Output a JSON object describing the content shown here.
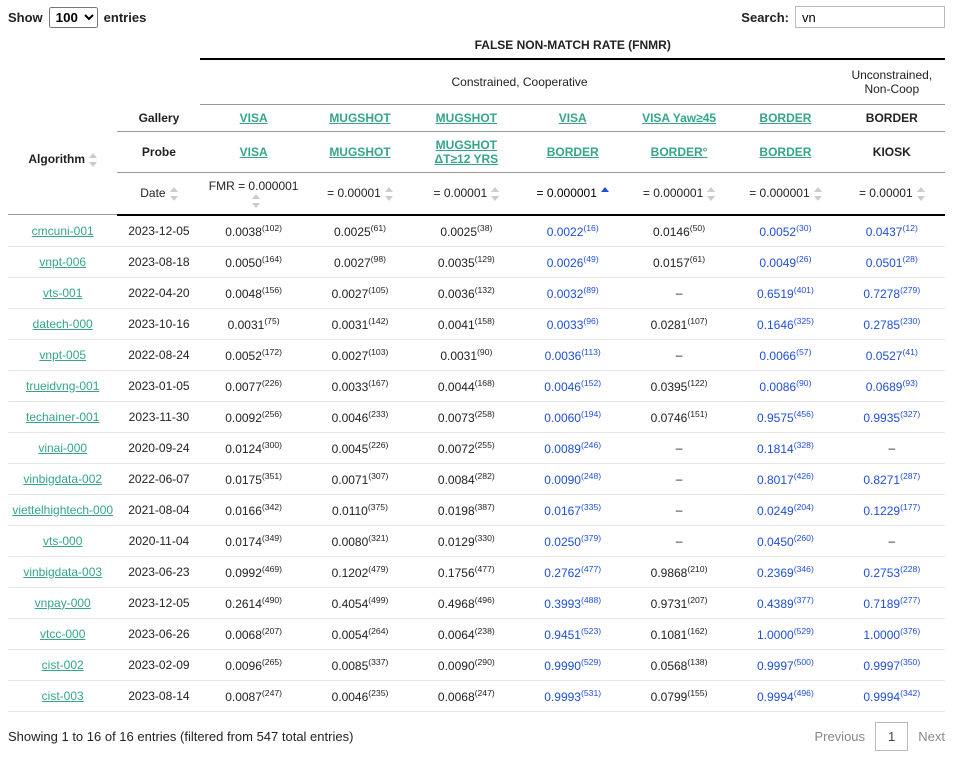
{
  "controls": {
    "show_label_pre": "Show",
    "show_label_post": "entries",
    "show_value": "100",
    "search_label": "Search:",
    "search_value": "vn"
  },
  "header": {
    "title": "FALSE NON-MATCH RATE (FNMR)",
    "group_constrained": "Constrained, Cooperative",
    "group_unconstrained": "Unconstrained, Non-Coop",
    "algorithm": "Algorithm",
    "gallery": "Gallery",
    "probe": "Probe",
    "date": "Date",
    "gallery_cols": [
      "VISA",
      "MUGSHOT",
      "MUGSHOT",
      "VISA",
      "VISA Yaw≥45",
      "BORDER",
      "BORDER"
    ],
    "gallery_links": [
      true,
      true,
      true,
      true,
      true,
      true,
      false
    ],
    "probe_cols": [
      "VISA",
      "MUGSHOT",
      "MUGSHOT ΔT≥12 YRS",
      "BORDER",
      "BORDER°",
      "BORDER",
      "KIOSK"
    ],
    "probe_links": [
      true,
      true,
      true,
      true,
      true,
      true,
      false
    ],
    "fmr_cols": [
      "FMR = 0.000001",
      "= 0.00001",
      "= 0.00001",
      "= 0.000001",
      "= 0.000001",
      "= 0.000001",
      "= 0.00001"
    ],
    "sorted_col_index": 3
  },
  "blue_cols": [
    3,
    5,
    6
  ],
  "rows": [
    {
      "algo": "cmcuni-001",
      "date": "2023-12-05",
      "vals": [
        [
          "0.0038",
          "102"
        ],
        [
          "0.0025",
          "61"
        ],
        [
          "0.0025",
          "38"
        ],
        [
          "0.0022",
          "16"
        ],
        [
          "0.0146",
          "50"
        ],
        [
          "0.0052",
          "30"
        ],
        [
          "0.0437",
          "12"
        ]
      ]
    },
    {
      "algo": "vnpt-006",
      "date": "2023-08-18",
      "vals": [
        [
          "0.0050",
          "164"
        ],
        [
          "0.0027",
          "98"
        ],
        [
          "0.0035",
          "129"
        ],
        [
          "0.0026",
          "49"
        ],
        [
          "0.0157",
          "61"
        ],
        [
          "0.0049",
          "26"
        ],
        [
          "0.0501",
          "28"
        ]
      ]
    },
    {
      "algo": "vts-001",
      "date": "2022-04-20",
      "vals": [
        [
          "0.0048",
          "156"
        ],
        [
          "0.0027",
          "105"
        ],
        [
          "0.0036",
          "132"
        ],
        [
          "0.0032",
          "89"
        ],
        [
          "–",
          ""
        ],
        [
          "0.6519",
          "401"
        ],
        [
          "0.7278",
          "279"
        ]
      ]
    },
    {
      "algo": "datech-000",
      "date": "2023-10-16",
      "vals": [
        [
          "0.0031",
          "75"
        ],
        [
          "0.0031",
          "142"
        ],
        [
          "0.0041",
          "158"
        ],
        [
          "0.0033",
          "96"
        ],
        [
          "0.0281",
          "107"
        ],
        [
          "0.1646",
          "325"
        ],
        [
          "0.2785",
          "230"
        ]
      ]
    },
    {
      "algo": "vnpt-005",
      "date": "2022-08-24",
      "vals": [
        [
          "0.0052",
          "172"
        ],
        [
          "0.0027",
          "103"
        ],
        [
          "0.0031",
          "90"
        ],
        [
          "0.0036",
          "113"
        ],
        [
          "–",
          ""
        ],
        [
          "0.0066",
          "57"
        ],
        [
          "0.0527",
          "41"
        ]
      ]
    },
    {
      "algo": "trueidvng-001",
      "date": "2023-01-05",
      "vals": [
        [
          "0.0077",
          "226"
        ],
        [
          "0.0033",
          "167"
        ],
        [
          "0.0044",
          "168"
        ],
        [
          "0.0046",
          "152"
        ],
        [
          "0.0395",
          "122"
        ],
        [
          "0.0086",
          "90"
        ],
        [
          "0.0689",
          "93"
        ]
      ]
    },
    {
      "algo": "techainer-001",
      "date": "2023-11-30",
      "vals": [
        [
          "0.0092",
          "256"
        ],
        [
          "0.0046",
          "233"
        ],
        [
          "0.0073",
          "258"
        ],
        [
          "0.0060",
          "194"
        ],
        [
          "0.0746",
          "151"
        ],
        [
          "0.9575",
          "456"
        ],
        [
          "0.9935",
          "327"
        ]
      ]
    },
    {
      "algo": "vinai-000",
      "date": "2020-09-24",
      "vals": [
        [
          "0.0124",
          "300"
        ],
        [
          "0.0045",
          "226"
        ],
        [
          "0.0072",
          "255"
        ],
        [
          "0.0089",
          "246"
        ],
        [
          "–",
          ""
        ],
        [
          "0.1814",
          "328"
        ],
        [
          "–",
          ""
        ]
      ]
    },
    {
      "algo": "vinbigdata-002",
      "date": "2022-06-07",
      "vals": [
        [
          "0.0175",
          "351"
        ],
        [
          "0.0071",
          "307"
        ],
        [
          "0.0084",
          "282"
        ],
        [
          "0.0090",
          "248"
        ],
        [
          "–",
          ""
        ],
        [
          "0.8017",
          "426"
        ],
        [
          "0.8271",
          "287"
        ]
      ]
    },
    {
      "algo": "viettelhightech-000",
      "date": "2021-08-04",
      "vals": [
        [
          "0.0166",
          "342"
        ],
        [
          "0.0110",
          "375"
        ],
        [
          "0.0198",
          "387"
        ],
        [
          "0.0167",
          "335"
        ],
        [
          "–",
          ""
        ],
        [
          "0.0249",
          "204"
        ],
        [
          "0.1229",
          "177"
        ]
      ]
    },
    {
      "algo": "vts-000",
      "date": "2020-11-04",
      "vals": [
        [
          "0.0174",
          "349"
        ],
        [
          "0.0080",
          "321"
        ],
        [
          "0.0129",
          "330"
        ],
        [
          "0.0250",
          "379"
        ],
        [
          "–",
          ""
        ],
        [
          "0.0450",
          "260"
        ],
        [
          "–",
          ""
        ]
      ]
    },
    {
      "algo": "vinbigdata-003",
      "date": "2023-06-23",
      "vals": [
        [
          "0.0992",
          "469"
        ],
        [
          "0.1202",
          "479"
        ],
        [
          "0.1756",
          "477"
        ],
        [
          "0.2762",
          "477"
        ],
        [
          "0.9868",
          "210"
        ],
        [
          "0.2369",
          "346"
        ],
        [
          "0.2753",
          "228"
        ]
      ]
    },
    {
      "algo": "vnpay-000",
      "date": "2023-12-05",
      "vals": [
        [
          "0.2614",
          "490"
        ],
        [
          "0.4054",
          "499"
        ],
        [
          "0.4968",
          "496"
        ],
        [
          "0.3993",
          "488"
        ],
        [
          "0.9731",
          "207"
        ],
        [
          "0.4389",
          "377"
        ],
        [
          "0.7189",
          "277"
        ]
      ]
    },
    {
      "algo": "vtcc-000",
      "date": "2023-06-26",
      "vals": [
        [
          "0.0068",
          "207"
        ],
        [
          "0.0054",
          "264"
        ],
        [
          "0.0064",
          "238"
        ],
        [
          "0.9451",
          "523"
        ],
        [
          "0.1081",
          "162"
        ],
        [
          "1.0000",
          "529"
        ],
        [
          "1.0000",
          "376"
        ]
      ]
    },
    {
      "algo": "cist-002",
      "date": "2023-02-09",
      "vals": [
        [
          "0.0096",
          "265"
        ],
        [
          "0.0085",
          "337"
        ],
        [
          "0.0090",
          "290"
        ],
        [
          "0.9990",
          "529"
        ],
        [
          "0.0568",
          "138"
        ],
        [
          "0.9997",
          "500"
        ],
        [
          "0.9997",
          "350"
        ]
      ]
    },
    {
      "algo": "cist-003",
      "date": "2023-08-14",
      "vals": [
        [
          "0.0087",
          "247"
        ],
        [
          "0.0046",
          "235"
        ],
        [
          "0.0068",
          "247"
        ],
        [
          "0.9993",
          "531"
        ],
        [
          "0.0799",
          "155"
        ],
        [
          "0.9994",
          "496"
        ],
        [
          "0.9994",
          "342"
        ]
      ]
    }
  ],
  "footer": {
    "info": "Showing 1 to 16 of 16 entries (filtered from 547 total entries)",
    "prev": "Previous",
    "page": "1",
    "next": "Next"
  }
}
